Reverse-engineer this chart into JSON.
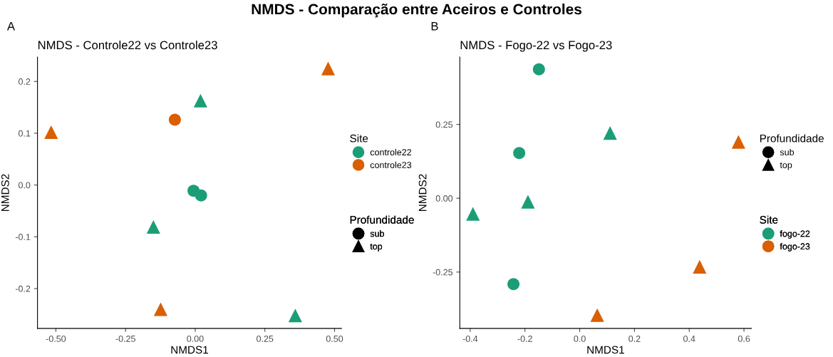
{
  "chart_data": [
    {
      "type": "scatter",
      "title": "NMDS - Controle22 vs Controle23",
      "xlabel": "NMDS1",
      "ylabel": "NMDS2",
      "legend_title": "Site",
      "annotations": [
        "NMDS - Comparação entre Aceiros e Controles",
        "A",
        "Profundidade",
        "sub",
        "top"
      ],
      "series": [
        {
          "name": "controle22",
          "color": "#1b9e77",
          "marker": "circle",
          "x": [
            -0.006,
            0.021
          ],
          "values": [
            -0.011,
            -0.02
          ]
        },
        {
          "color": "#1b9e77",
          "marker": "triangle",
          "x": [
            0.019,
            -0.15,
            0.359
          ],
          "values": [
            0.163,
            -0.081,
            -0.252
          ]
        },
        {
          "name": "controle23",
          "color": "#d95f02",
          "marker": "circle",
          "x": [
            -0.073
          ],
          "values": [
            0.126
          ]
        },
        {
          "color": "#d95f02",
          "marker": "triangle",
          "x": [
            0.477,
            -0.517,
            -0.124
          ],
          "values": [
            0.225,
            0.102,
            -0.24
          ]
        }
      ],
      "xlim": [
        -0.566,
        0.525
      ],
      "ylim": [
        -0.277,
        0.247
      ],
      "xticks": [
        {
          "value": -0.5,
          "label": "-0.50"
        },
        {
          "value": -0.25,
          "label": "-0.25"
        },
        {
          "value": 0,
          "label": "0.00"
        },
        {
          "value": 0.25,
          "label": "0.25"
        },
        {
          "value": 0.5,
          "label": "0.50"
        }
      ],
      "yticks": [
        {
          "value": -0.2,
          "label": "-0.2"
        },
        {
          "value": -0.1,
          "label": "-0.1"
        },
        {
          "value": 0,
          "label": "0.0"
        },
        {
          "value": 0.1,
          "label": "0.1"
        },
        {
          "value": 0.2,
          "label": "0.2"
        }
      ],
      "grid": false,
      "legend": "right"
    },
    {
      "type": "scatter",
      "title": "NMDS - Fogo-22 vs Fogo-23",
      "xlabel": "NMDS1",
      "ylabel": "NMDS2",
      "legend_title": "Site",
      "annotations": [
        "B",
        "Profundidade",
        "sub",
        "top"
      ],
      "series": [
        {
          "name": "fogo-22",
          "color": "#1b9e77",
          "marker": "circle",
          "x": [
            -0.149,
            -0.221,
            -0.242
          ],
          "values": [
            0.437,
            0.153,
            -0.291
          ]
        },
        {
          "color": "#1b9e77",
          "marker": "triangle",
          "x": [
            0.111,
            -0.189,
            -0.39
          ],
          "values": [
            0.221,
            -0.012,
            -0.053
          ]
        },
        {
          "name": "fogo-23",
          "color": "#d95f02",
          "marker": "triangle",
          "x": [
            0.58,
            0.438,
            0.064
          ],
          "values": [
            0.191,
            -0.232,
            -0.396
          ]
        }
      ],
      "xlim": [
        -0.438,
        0.627
      ],
      "ylim": [
        -0.441,
        0.478
      ],
      "xticks": [
        {
          "value": -0.4,
          "label": "-0.4"
        },
        {
          "value": -0.2,
          "label": "-0.2"
        },
        {
          "value": 0,
          "label": "0.0"
        },
        {
          "value": 0.2,
          "label": "0.2"
        },
        {
          "value": 0.4,
          "label": "0.4"
        },
        {
          "value": 0.6,
          "label": "0.6"
        }
      ],
      "yticks": [
        {
          "value": -0.25,
          "label": "-0.25"
        },
        {
          "value": 0,
          "label": "0.00"
        },
        {
          "value": 0.25,
          "label": "0.25"
        }
      ],
      "grid": false,
      "legend": "right"
    }
  ]
}
